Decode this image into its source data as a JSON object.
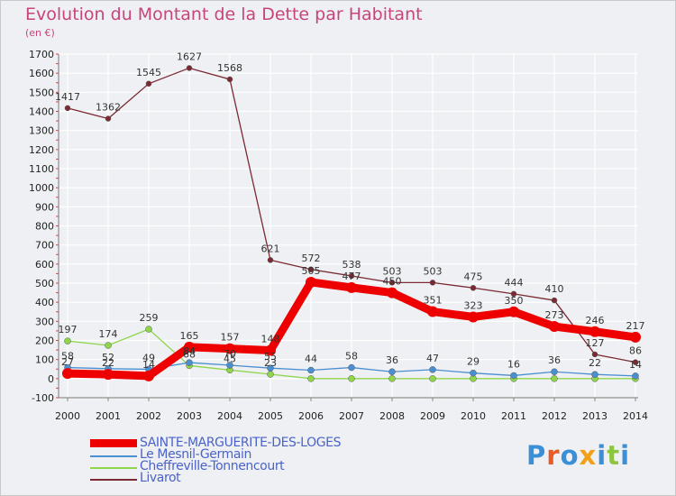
{
  "title": "Evolution du Montant de la Dette par Habitant",
  "unit_label": "(en €)",
  "brand": "Proxiti",
  "chart_data": {
    "type": "line",
    "title": "Evolution du Montant de la Dette par Habitant",
    "ylabel": "(en €)",
    "x": [
      "2000",
      "2001",
      "2002",
      "2003",
      "2004",
      "2005",
      "2006",
      "2007",
      "2008",
      "2009",
      "2010",
      "2011",
      "2012",
      "2013",
      "2014"
    ],
    "yticks": [
      "-100",
      "0",
      "100",
      "200",
      "300",
      "400",
      "500",
      "600",
      "700",
      "800",
      "900",
      "1000",
      "1100",
      "1200",
      "1300",
      "1400",
      "1500",
      "1600",
      "1700"
    ],
    "ylim": [
      -100,
      1700
    ],
    "grid": true,
    "legend_position": "bottom-left",
    "series": [
      {
        "name": "SAINTE-MARGUERITE-DES-LOGES",
        "color": "#ee0000",
        "values": [
          27,
          22,
          14,
          165,
          157,
          148,
          505,
          477,
          450,
          351,
          323,
          350,
          273,
          246,
          217
        ]
      },
      {
        "name": "Le Mesnil-Germain",
        "color": "#4a8fd0",
        "values": [
          58,
          52,
          49,
          84,
          70,
          55,
          44,
          58,
          36,
          47,
          29,
          16,
          36,
          22,
          14
        ]
      },
      {
        "name": "Cheffreville-Tonnencourt",
        "color": "#8fd64a",
        "values": [
          197,
          174,
          259,
          68,
          45,
          23,
          0,
          0,
          0,
          0,
          0,
          0,
          0,
          0,
          0
        ]
      },
      {
        "name": "Livarot",
        "color": "#7a2a33",
        "values": [
          1417,
          1362,
          1545,
          1627,
          1568,
          621,
          572,
          538,
          503,
          503,
          475,
          444,
          410,
          127,
          86
        ]
      }
    ],
    "point_labels": [
      {
        "series": 0,
        "labels": [
          "27",
          "22",
          "14",
          "165",
          "157",
          "148",
          "505",
          "477",
          "450",
          "351",
          "323",
          "350",
          "273",
          "246",
          "217"
        ]
      },
      {
        "series": 1,
        "labels": [
          "58",
          "52",
          "49",
          "84",
          "70",
          "55",
          "44",
          "58",
          "36",
          "47",
          "29",
          "16",
          "36",
          "22",
          "14"
        ]
      },
      {
        "series": 2,
        "labels": [
          "197",
          "174",
          "259",
          "68",
          "45",
          "23",
          "",
          "",
          "",
          "",
          "",
          "",
          "",
          "",
          ""
        ]
      },
      {
        "series": 3,
        "labels": [
          "1417",
          "1362",
          "1545",
          "1627",
          "1568",
          "621",
          "572",
          "538",
          "503",
          "503",
          "475",
          "444",
          "410",
          "127",
          "86"
        ]
      }
    ]
  }
}
